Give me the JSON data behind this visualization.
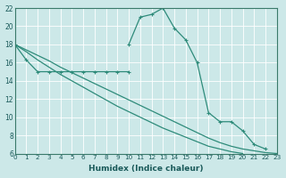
{
  "xlabel": "Humidex (Indice chaleur)",
  "background_color": "#cce8e8",
  "grid_color": "#ffffff",
  "line_color": "#2e8b7a",
  "xlim": [
    0,
    23
  ],
  "ylim": [
    6,
    22
  ],
  "xticks": [
    0,
    1,
    2,
    3,
    4,
    5,
    6,
    7,
    8,
    9,
    10,
    11,
    12,
    13,
    14,
    15,
    16,
    17,
    18,
    19,
    20,
    21,
    22,
    23
  ],
  "yticks": [
    6,
    8,
    10,
    12,
    14,
    16,
    18,
    20,
    22
  ],
  "line1_x": [
    0,
    1,
    2,
    3,
    4,
    5,
    6,
    7,
    8,
    9,
    10
  ],
  "line1_y": [
    18,
    16.3,
    15,
    15,
    15,
    15,
    15,
    15,
    15,
    15,
    15
  ],
  "line2_x": [
    10,
    11,
    12,
    13,
    14,
    15,
    16,
    17,
    18,
    19,
    20,
    21,
    22
  ],
  "line2_y": [
    18,
    21,
    21.3,
    22,
    19.8,
    18.5,
    16,
    10.5,
    9.5,
    9.5,
    8.5,
    7,
    6.5
  ],
  "line3_x": [
    0,
    1,
    2,
    3,
    4,
    5,
    6,
    7,
    8,
    9,
    10,
    11,
    12,
    13,
    14,
    15,
    16,
    17,
    18,
    19,
    20,
    21,
    22,
    23
  ],
  "line3_y": [
    18,
    17.4,
    16.8,
    16.2,
    15.5,
    14.9,
    14.3,
    13.7,
    13.1,
    12.5,
    11.9,
    11.3,
    10.7,
    10.1,
    9.5,
    8.9,
    8.3,
    7.7,
    7.2,
    6.8,
    6.5,
    6.3,
    6.1,
    6.0
  ],
  "line4_x": [
    0,
    1,
    2,
    3,
    4,
    5,
    6,
    7,
    8,
    9,
    10,
    11,
    12,
    13,
    14,
    15,
    16,
    17,
    18,
    19,
    20,
    21,
    22,
    23
  ],
  "line4_y": [
    18,
    17.2,
    16.3,
    15.5,
    14.7,
    14.0,
    13.3,
    12.6,
    11.9,
    11.2,
    10.6,
    10.0,
    9.4,
    8.8,
    8.3,
    7.8,
    7.3,
    6.8,
    6.5,
    6.2,
    6.0,
    null,
    null,
    null
  ]
}
